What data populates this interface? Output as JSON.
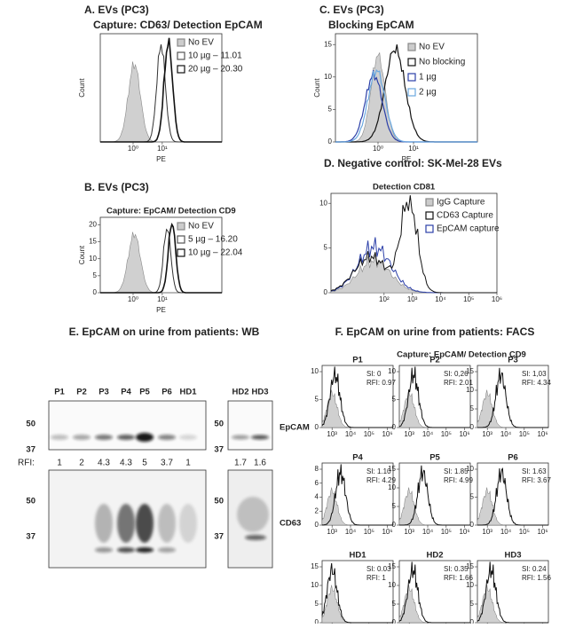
{
  "panel_a": {
    "title": "A.  EVs (PC3)",
    "subtitle": "Capture: CD63/ Detection EpCAM",
    "y_label": "Count",
    "x_label": "PE",
    "x_ticks": [
      "10⁰",
      "10¹"
    ],
    "legend": [
      "No EV",
      "10 µg – 11.01",
      "20 µg – 20.30"
    ]
  },
  "panel_b": {
    "title": "B.  EVs (PC3)",
    "subtitle": "Capture: EpCAM/ Detection CD9",
    "y_label": "Count",
    "x_label": "PE",
    "y_ticks": [
      0,
      5,
      10,
      15,
      20
    ],
    "x_ticks": [
      "10⁰",
      "10¹"
    ],
    "legend": [
      "No EV",
      "5 µg – 16.20",
      "10 µg – 22.04"
    ]
  },
  "panel_c": {
    "title": "C.  EVs (PC3)",
    "subtitle": "Blocking EpCAM",
    "y_label": "Count",
    "x_label": "PE",
    "y_ticks": [
      0,
      5,
      10,
      15
    ],
    "x_ticks": [
      "10⁰",
      "10¹"
    ],
    "legend": [
      "No EV",
      "No blocking",
      "1 µg",
      "2 µg"
    ]
  },
  "panel_d": {
    "title": "D.  Negative control: SK-Mel-28 EVs",
    "subtitle": "Detection CD81",
    "y_ticks": [
      0,
      5,
      10
    ],
    "x_ticks": [
      "10²",
      "10³",
      "10⁴",
      "10⁵",
      "10⁶"
    ],
    "legend": [
      "IgG Capture",
      "CD63 Capture",
      "EpCAM capture"
    ]
  },
  "panel_e": {
    "title": "E. EpCAM on urine from patients: WB",
    "lanes": [
      "P1",
      "P2",
      "P3",
      "P4",
      "P5",
      "P6",
      "HD1"
    ],
    "lanes_hd": [
      "HD2",
      "HD3"
    ],
    "markers": [
      50,
      37
    ],
    "blots": [
      "EpCAM",
      "CD63"
    ],
    "rfi_label": "RFI:",
    "rfi": [
      1,
      2,
      4.3,
      4.3,
      5,
      3.7,
      1
    ],
    "rfi_hd": [
      1.7,
      1.6
    ]
  },
  "panel_f": {
    "title": "F. EpCAM on urine from patients: FACS",
    "subtitle": "Capture: EpCAM/ Detection CD9",
    "x_ticks": [
      "10³",
      "10⁴",
      "10⁵",
      "10⁶"
    ],
    "plots": [
      {
        "name": "P1",
        "si": "SI: 0",
        "rfi": "RFI: 0.97",
        "y_ticks": [
          0,
          5,
          10
        ]
      },
      {
        "name": "P2",
        "si": "SI: 0,26",
        "rfi": "RFI: 2.01",
        "y_ticks": [
          0,
          5,
          10
        ]
      },
      {
        "name": "P3",
        "si": "SI: 1,03",
        "rfi": "RFI: 4.34",
        "y_ticks": [
          0,
          5,
          10,
          15
        ]
      },
      {
        "name": "P4",
        "si": "SI: 1.10",
        "rfi": "RFI: 4.29",
        "y_ticks": [
          0,
          2,
          4,
          6,
          8
        ]
      },
      {
        "name": "P5",
        "si": "SI: 1.85",
        "rfi": "RFI: 4.99",
        "y_ticks": [
          0,
          5,
          10,
          15
        ]
      },
      {
        "name": "P6",
        "si": "SI: 1.63",
        "rfi": "RFI: 3.67",
        "y_ticks": [
          0,
          5,
          10
        ]
      },
      {
        "name": "HD1",
        "si": "SI: 0.03",
        "rfi": "RFI: 1",
        "y_ticks": [
          0,
          5,
          10,
          15
        ]
      },
      {
        "name": "HD2",
        "si": "SI: 0.35",
        "rfi": "RFI: 1.66",
        "y_ticks": [
          0,
          5,
          10,
          15
        ]
      },
      {
        "name": "HD3",
        "si": "SI: 0.24",
        "rfi": "RFI: 1.56",
        "y_ticks": [
          0,
          5,
          10,
          15
        ]
      }
    ]
  }
}
